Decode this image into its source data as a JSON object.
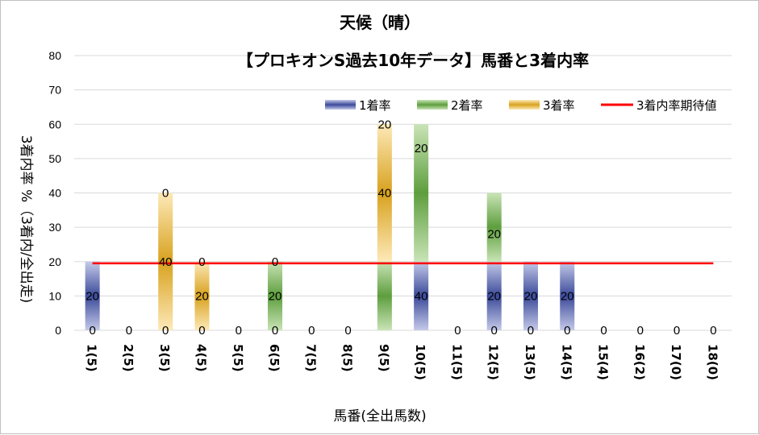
{
  "chart_data": {
    "type": "bar",
    "stacked": true,
    "title": "天候（晴）",
    "subtitle": "【プロキオンS過去10年データ】馬番と3着内率",
    "xlabel": "馬番(全出馬数)",
    "ylabel": "3着内率 %（3着内/全出走)",
    "ylim": [
      0,
      80
    ],
    "yticks": [
      "0",
      "10",
      "20",
      "30",
      "40",
      "50",
      "60",
      "70",
      "80"
    ],
    "grid": true,
    "legend_position": "top-right",
    "categories": [
      "1(5)",
      "2(5)",
      "3(5)",
      "4(5)",
      "5(5)",
      "6(5)",
      "7(5)",
      "8(5)",
      "9(5)",
      "10(5)",
      "11(5)",
      "12(5)",
      "13(5)",
      "14(5)",
      "15(4)",
      "16(2)",
      "17(0)",
      "18(0)"
    ],
    "series": [
      {
        "name": "1着率",
        "color": "#3b4a9a",
        "values": [
          20,
          0,
          0,
          0,
          0,
          0,
          0,
          0,
          0,
          20,
          0,
          20,
          20,
          20,
          0,
          0,
          0,
          0
        ]
      },
      {
        "name": "2着率",
        "color": "#5e9e3e",
        "values": [
          0,
          0,
          0,
          0,
          0,
          20,
          0,
          0,
          20,
          40,
          0,
          20,
          0,
          0,
          0,
          0,
          0,
          0
        ]
      },
      {
        "name": "3着率",
        "color": "#d8a21f",
        "values": [
          0,
          0,
          40,
          20,
          0,
          0,
          0,
          0,
          40,
          0,
          0,
          0,
          0,
          0,
          0,
          0,
          0,
          0
        ]
      }
    ],
    "line": {
      "name": "3着内率期待値",
      "color": "#ff0000",
      "value": 19.5
    },
    "data_labels": [
      [
        "0",
        "0",
        "0",
        "0",
        "0",
        "0",
        "0",
        "0",
        "20",
        "20",
        "0",
        "0",
        "0",
        "0",
        "0",
        "0",
        "0",
        "0"
      ],
      [
        "20",
        "0",
        "0",
        "0",
        "0",
        "20",
        "0",
        "0",
        "0",
        "40",
        "0",
        "20",
        "20",
        "20",
        "0",
        "0",
        "0",
        "0"
      ],
      [
        "0",
        "0",
        "40",
        "20",
        "0",
        "0",
        "0",
        "0",
        "40",
        "0",
        "0",
        "20",
        "0",
        "0",
        "0",
        "0",
        "0",
        "0"
      ],
      [
        "0",
        "0",
        "0",
        "0",
        "0",
        "0",
        "0",
        "0",
        "0",
        "0",
        "0",
        "0",
        "0",
        "0",
        "0",
        "0",
        "0",
        "0"
      ]
    ],
    "label_positions": [
      [
        "bottom",
        "bottom",
        "bottom",
        "bottom",
        "bottom",
        "bottom",
        "bottom",
        "bottom",
        "top",
        "top",
        "bottom",
        "bottom",
        "bottom",
        "bottom",
        "bottom",
        "bottom",
        "bottom",
        "bottom"
      ],
      [
        "mid",
        "",
        "",
        "",
        "",
        "mid",
        "",
        "",
        "",
        "mid",
        "",
        "mid",
        "mid",
        "mid",
        "",
        "",
        "",
        ""
      ],
      [
        "",
        "",
        "mid",
        "mid",
        "",
        "",
        "",
        "",
        "mid",
        "",
        "",
        "high",
        "",
        "",
        "",
        "",
        "",
        ""
      ],
      [
        "",
        "",
        "top",
        "top",
        "",
        "top",
        "",
        "",
        "",
        "",
        "",
        "",
        "",
        "",
        "",
        "",
        "",
        ""
      ]
    ]
  }
}
